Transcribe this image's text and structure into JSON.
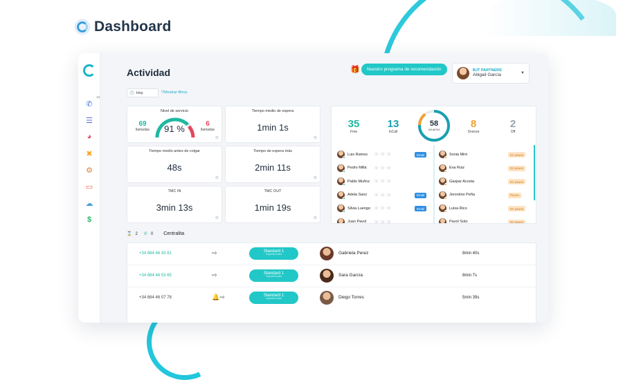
{
  "header": {
    "title": "Dashboard"
  },
  "colors": {
    "accent": "#22c7c7",
    "green": "#1fb8a1",
    "red": "#e5485d",
    "orange": "#f0a030",
    "teal_num": "#1a9fb0"
  },
  "sidebar": {
    "items": [
      {
        "icon": "phone-icon",
        "badge": "13",
        "color": "#3a6fd8"
      },
      {
        "icon": "list-icon",
        "color": "#5b6ad6"
      },
      {
        "icon": "pie-chart-icon",
        "color": "#e64a6a"
      },
      {
        "icon": "cross-tools-icon",
        "color": "#f5a623"
      },
      {
        "icon": "gear-icon",
        "color": "#d9823a"
      },
      {
        "icon": "ticket-icon",
        "color": "#f26b4a"
      },
      {
        "icon": "cloud-icon",
        "color": "#4a9ed8"
      },
      {
        "icon": "dollar-icon",
        "color": "#28b46a"
      }
    ]
  },
  "main": {
    "title": "Actividad",
    "promo_label": "Nuestro programa de recomendación",
    "partner": {
      "company": "BJT PARTNERS",
      "user": "Abigail García"
    },
    "filters": {
      "date": "Hoy",
      "link": "Mostrar filtros"
    }
  },
  "kpis": {
    "service": {
      "title": "Nivel de servicio",
      "percent": "91 %",
      "percent_value": 91,
      "left_num": "69",
      "left_label": "llamadas",
      "right_num": "6",
      "right_label": "llamadas"
    },
    "cards": [
      {
        "title": "Tiempo medio de espera",
        "value": "1min 1s"
      },
      {
        "title": "Tiempo medio antes de colgar",
        "value": "48s"
      },
      {
        "title": "Tiempo de espera más",
        "value": "2min 11s"
      },
      {
        "title": "TMC IN",
        "value": "3min 13s"
      },
      {
        "title": "TMC OUT",
        "value": "1min 19s"
      }
    ]
  },
  "users": {
    "stats": [
      {
        "num": "35",
        "label": "Free",
        "color": "#1fb8a1"
      },
      {
        "num": "13",
        "label": "InCall",
        "color": "#1a9fb0"
      },
      {
        "num": "8",
        "label": "Snooze",
        "color": "#f0a030"
      },
      {
        "num": "2",
        "label": "Off",
        "color": "#9aa3ad"
      }
    ],
    "ring": {
      "num": "58",
      "label": "usuarios"
    },
    "left": [
      {
        "name": "Luis Ramos",
        "dot": "#1fb8a1",
        "badge": "Email"
      },
      {
        "name": "Pedro Millá",
        "dot": "#1fb8a1",
        "badge": ""
      },
      {
        "name": "Pablo Muñoz",
        "dot": "#1fb8a1",
        "badge": ""
      },
      {
        "name": "Adela Sanz",
        "dot": "#1fb8a1",
        "badge": "Email"
      },
      {
        "name": "Silvia Luengo",
        "dot": "#1fb8a1",
        "badge": "Email"
      },
      {
        "name": "Juan Pavol",
        "dot": "#1fb8a1",
        "badge": ""
      }
    ],
    "right": [
      {
        "name": "Sonia Miró",
        "dot": "#f0a030",
        "badge": "En pausa"
      },
      {
        "name": "Eva Ruiz",
        "dot": "#f0a030",
        "badge": "En pausa"
      },
      {
        "name": "Gaspar Acosta",
        "dot": "#f0a030",
        "badge": "En pausa"
      },
      {
        "name": "Jeronimo Peña",
        "dot": "#f0a030",
        "badge": "Pausa"
      },
      {
        "name": "Luisa Rico",
        "dot": "#f0a030",
        "badge": "En pausa"
      },
      {
        "name": "Pavol Soto",
        "dot": "#f0a030",
        "badge": "En pausa"
      }
    ]
  },
  "central": {
    "title": "Centralita",
    "counter_a": "2",
    "counter_b": "0",
    "calls": [
      {
        "phone": "+34 684 46 43 61",
        "phone_color": "#1fb8a1",
        "icons": "⇨",
        "queue": "Standard 1",
        "queue_sub": "Soporte/Leads",
        "name": "Gabriela Perez",
        "avatar": "#6b3a2a",
        "duration": "8min 40s"
      },
      {
        "phone": "+34 684 46 53 65",
        "phone_color": "#1fb8a1",
        "icons": "⇨",
        "queue": "Standard 1",
        "queue_sub": "Soporte/Leads",
        "name": "Sara García",
        "avatar": "#4a2a1a",
        "duration": "8min 7s"
      },
      {
        "phone": "+34 684 46 07 78",
        "phone_color": "#444444",
        "icons": "🔔⇨",
        "queue": "Standard 1",
        "queue_sub": "Soporte/Leads",
        "name": "Diego Torres",
        "avatar": "#7a5a45",
        "duration": "5min 39s"
      }
    ]
  }
}
